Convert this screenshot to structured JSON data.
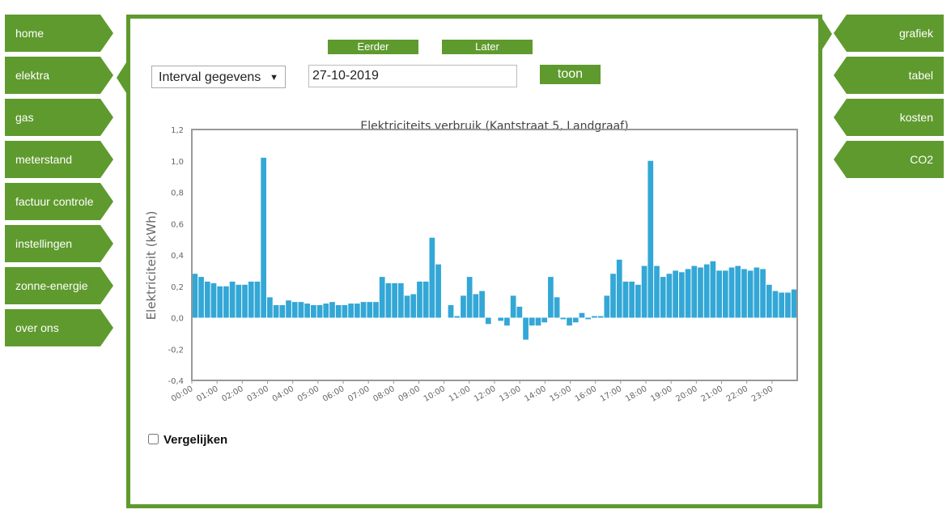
{
  "left_nav": [
    {
      "label": "home"
    },
    {
      "label": "elektra"
    },
    {
      "label": "gas"
    },
    {
      "label": "meterstand"
    },
    {
      "label": "factuur controle"
    },
    {
      "label": "instellingen"
    },
    {
      "label": "zonne-energie"
    },
    {
      "label": "over ons"
    }
  ],
  "right_nav": [
    {
      "label": "grafiek"
    },
    {
      "label": "tabel"
    },
    {
      "label": "kosten"
    },
    {
      "label": "CO2"
    }
  ],
  "controls": {
    "earlier_label": "Eerder",
    "later_label": "Later",
    "interval_select": "Interval gegevens",
    "date_value": "27-10-2019",
    "show_label": "toon",
    "compare_label": "Vergelijken"
  },
  "colors": {
    "accent": "#5f9a2e",
    "bar": "#33a7d6"
  },
  "chart_data": {
    "type": "bar",
    "title": "Elektriciteits verbruik (Kantstraat 5, Landgraaf)",
    "ylabel": "Elektriciteit (kWh)",
    "xlabel": "",
    "ylim": [
      -0.4,
      1.2
    ],
    "y_ticks": [
      "-0,4",
      "-0,2",
      "0,0",
      "0,2",
      "0,4",
      "0,6",
      "0,8",
      "1,0",
      "1,2"
    ],
    "x_ticks": [
      "00:00",
      "01:00",
      "02:00",
      "03:00",
      "04:00",
      "05:00",
      "06:00",
      "07:00",
      "08:00",
      "09:00",
      "10:00",
      "11:00",
      "12:00",
      "13:00",
      "14:00",
      "15:00",
      "16:00",
      "17:00",
      "18:00",
      "19:00",
      "20:00",
      "21:00",
      "22:00",
      "23:00"
    ],
    "interval": "15 min",
    "values": [
      0.28,
      0.26,
      0.23,
      0.22,
      0.2,
      0.2,
      0.23,
      0.21,
      0.21,
      0.23,
      0.23,
      1.02,
      0.13,
      0.08,
      0.08,
      0.11,
      0.1,
      0.1,
      0.09,
      0.08,
      0.08,
      0.09,
      0.1,
      0.08,
      0.08,
      0.09,
      0.09,
      0.1,
      0.1,
      0.1,
      0.26,
      0.22,
      0.22,
      0.22,
      0.14,
      0.15,
      0.23,
      0.23,
      0.51,
      0.34,
      0.0,
      0.08,
      0.01,
      0.14,
      0.26,
      0.15,
      0.17,
      -0.04,
      0.0,
      -0.02,
      -0.05,
      0.14,
      0.07,
      -0.14,
      -0.05,
      -0.05,
      -0.03,
      0.26,
      0.13,
      -0.01,
      -0.05,
      -0.03,
      0.03,
      -0.01,
      0.01,
      0.01,
      0.14,
      0.28,
      0.37,
      0.23,
      0.23,
      0.21,
      0.33,
      1.0,
      0.33,
      0.26,
      0.28,
      0.3,
      0.29,
      0.31,
      0.33,
      0.32,
      0.34,
      0.36,
      0.3,
      0.3,
      0.32,
      0.33,
      0.31,
      0.3,
      0.32,
      0.31,
      0.21,
      0.17,
      0.16,
      0.16,
      0.18
    ]
  }
}
